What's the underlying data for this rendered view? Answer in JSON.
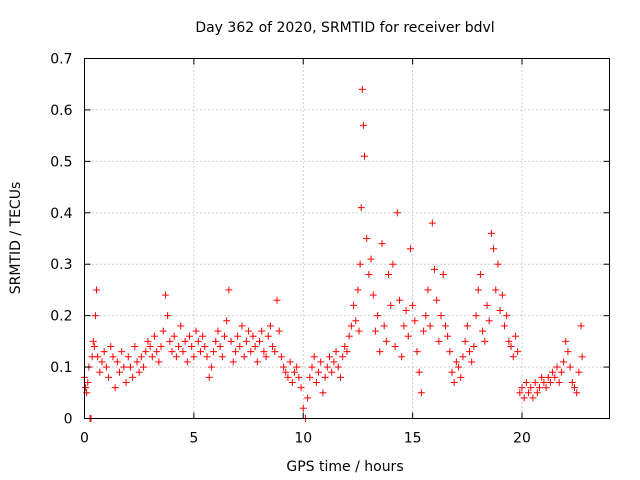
{
  "chart_data": {
    "type": "scatter",
    "title": "Day 362 of 2020, SRMTID for receiver bdvl",
    "xlabel": "GPS time / hours",
    "ylabel": "SRMTID / TECUs",
    "xlim": [
      0,
      24
    ],
    "ylim": [
      0,
      0.7
    ],
    "xticks": [
      "0",
      "5",
      "10",
      "15",
      "20"
    ],
    "yticks": [
      "0",
      "0.1",
      "0.2",
      "0.3",
      "0.4",
      "0.5",
      "0.6",
      "0.7"
    ],
    "grid": true,
    "marker": "+",
    "color": "#ff0000",
    "series": [
      {
        "name": "SRMTID",
        "x": [
          0.0,
          0.05,
          0.1,
          0.15,
          0.2,
          0.25,
          0.3,
          0.35,
          0.4,
          0.45,
          0.5,
          0.55,
          0.6,
          0.7,
          0.8,
          0.9,
          1.0,
          1.1,
          1.2,
          1.3,
          1.4,
          1.5,
          1.6,
          1.7,
          1.8,
          1.9,
          2.0,
          2.1,
          2.2,
          2.3,
          2.4,
          2.5,
          2.6,
          2.7,
          2.8,
          2.9,
          3.0,
          3.1,
          3.2,
          3.3,
          3.4,
          3.5,
          3.6,
          3.7,
          3.8,
          3.9,
          4.0,
          4.1,
          4.2,
          4.3,
          4.4,
          4.5,
          4.6,
          4.7,
          4.8,
          4.9,
          5.0,
          5.1,
          5.2,
          5.3,
          5.4,
          5.5,
          5.6,
          5.7,
          5.8,
          5.9,
          6.0,
          6.1,
          6.2,
          6.3,
          6.4,
          6.5,
          6.6,
          6.7,
          6.8,
          6.9,
          7.0,
          7.1,
          7.2,
          7.3,
          7.4,
          7.5,
          7.6,
          7.7,
          7.8,
          7.9,
          8.0,
          8.1,
          8.2,
          8.3,
          8.4,
          8.5,
          8.6,
          8.7,
          8.8,
          8.9,
          9.0,
          9.1,
          9.2,
          9.3,
          9.4,
          9.5,
          9.6,
          9.7,
          9.8,
          9.9,
          10.0,
          10.1,
          10.2,
          10.3,
          10.4,
          10.5,
          10.6,
          10.7,
          10.8,
          10.9,
          11.0,
          11.1,
          11.2,
          11.3,
          11.4,
          11.5,
          11.6,
          11.7,
          11.8,
          11.9,
          12.0,
          12.1,
          12.2,
          12.3,
          12.4,
          12.5,
          12.55,
          12.6,
          12.65,
          12.7,
          12.75,
          12.8,
          12.9,
          13.0,
          13.1,
          13.2,
          13.3,
          13.4,
          13.5,
          13.6,
          13.7,
          13.8,
          13.9,
          14.0,
          14.1,
          14.2,
          14.3,
          14.4,
          14.5,
          14.6,
          14.7,
          14.8,
          14.9,
          15.0,
          15.1,
          15.2,
          15.3,
          15.4,
          15.5,
          15.6,
          15.7,
          15.8,
          15.9,
          16.0,
          16.1,
          16.2,
          16.3,
          16.4,
          16.5,
          16.6,
          16.7,
          16.8,
          16.9,
          17.0,
          17.1,
          17.2,
          17.3,
          17.4,
          17.5,
          17.6,
          17.7,
          17.8,
          17.9,
          18.0,
          18.1,
          18.2,
          18.3,
          18.4,
          18.5,
          18.6,
          18.7,
          18.8,
          18.9,
          19.0,
          19.1,
          19.2,
          19.3,
          19.4,
          19.5,
          19.6,
          19.7,
          19.8,
          19.9,
          20.0,
          20.1,
          20.2,
          20.3,
          20.4,
          20.5,
          20.6,
          20.7,
          20.8,
          20.9,
          21.0,
          21.1,
          21.2,
          21.3,
          21.4,
          21.5,
          21.6,
          21.7,
          21.8,
          21.9,
          22.0,
          22.1,
          22.2,
          22.3,
          22.4,
          22.5,
          22.6,
          22.7,
          22.75
        ],
        "y": [
          0.08,
          0.06,
          0.05,
          0.07,
          0.1,
          0.0,
          0.0,
          0.12,
          0.15,
          0.14,
          0.2,
          0.25,
          0.12,
          0.09,
          0.11,
          0.13,
          0.1,
          0.08,
          0.14,
          0.12,
          0.06,
          0.11,
          0.09,
          0.13,
          0.1,
          0.07,
          0.12,
          0.1,
          0.08,
          0.14,
          0.11,
          0.09,
          0.12,
          0.1,
          0.13,
          0.15,
          0.14,
          0.12,
          0.16,
          0.13,
          0.11,
          0.14,
          0.17,
          0.24,
          0.2,
          0.15,
          0.13,
          0.16,
          0.12,
          0.14,
          0.18,
          0.13,
          0.15,
          0.11,
          0.16,
          0.14,
          0.12,
          0.17,
          0.15,
          0.13,
          0.16,
          0.14,
          0.12,
          0.08,
          0.1,
          0.13,
          0.15,
          0.17,
          0.14,
          0.12,
          0.16,
          0.19,
          0.25,
          0.15,
          0.11,
          0.13,
          0.16,
          0.14,
          0.18,
          0.12,
          0.15,
          0.17,
          0.13,
          0.16,
          0.14,
          0.11,
          0.15,
          0.17,
          0.13,
          0.12,
          0.16,
          0.18,
          0.14,
          0.13,
          0.23,
          0.17,
          0.12,
          0.1,
          0.09,
          0.08,
          0.11,
          0.07,
          0.09,
          0.1,
          0.08,
          0.06,
          0.02,
          0.0,
          0.04,
          0.08,
          0.1,
          0.12,
          0.07,
          0.09,
          0.11,
          0.05,
          0.08,
          0.1,
          0.12,
          0.09,
          0.11,
          0.13,
          0.1,
          0.08,
          0.12,
          0.14,
          0.13,
          0.16,
          0.18,
          0.22,
          0.19,
          0.25,
          0.17,
          0.3,
          0.41,
          0.64,
          0.57,
          0.51,
          0.35,
          0.28,
          0.31,
          0.24,
          0.17,
          0.2,
          0.13,
          0.34,
          0.18,
          0.15,
          0.28,
          0.22,
          0.3,
          0.14,
          0.4,
          0.23,
          0.12,
          0.18,
          0.21,
          0.16,
          0.33,
          0.22,
          0.19,
          0.13,
          0.09,
          0.05,
          0.17,
          0.2,
          0.25,
          0.18,
          0.38,
          0.29,
          0.23,
          0.15,
          0.2,
          0.28,
          0.18,
          0.16,
          0.13,
          0.09,
          0.07,
          0.11,
          0.1,
          0.08,
          0.12,
          0.15,
          0.18,
          0.13,
          0.11,
          0.14,
          0.2,
          0.25,
          0.28,
          0.17,
          0.15,
          0.22,
          0.19,
          0.36,
          0.33,
          0.25,
          0.3,
          0.21,
          0.24,
          0.18,
          0.2,
          0.15,
          0.14,
          0.12,
          0.16,
          0.13,
          0.05,
          0.06,
          0.04,
          0.07,
          0.05,
          0.06,
          0.04,
          0.07,
          0.05,
          0.06,
          0.08,
          0.07,
          0.06,
          0.08,
          0.07,
          0.09,
          0.08,
          0.1,
          0.07,
          0.09,
          0.11,
          0.15,
          0.13,
          0.1,
          0.07,
          0.06,
          0.05,
          0.09,
          0.18,
          0.12
        ]
      }
    ]
  }
}
